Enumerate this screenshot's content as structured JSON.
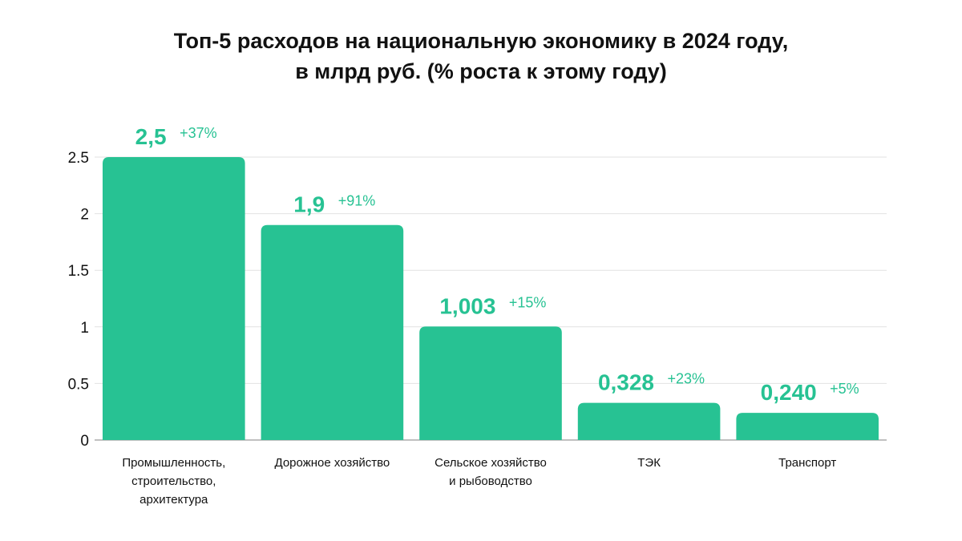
{
  "chart_data": {
    "type": "bar",
    "title_line1": "Топ-5 расходов на национальную экономику в 2024 году,",
    "title_line2": "в млрд руб. (% роста к этому году)",
    "categories": [
      [
        "Промышленность,",
        "строительство,",
        "архитектура"
      ],
      [
        "Дорожное хозяйство"
      ],
      [
        "Сельское хозяйство",
        "и рыбоводство"
      ],
      [
        "ТЭК"
      ],
      [
        "Транспорт"
      ]
    ],
    "values": [
      2.5,
      1.9,
      1.003,
      0.328,
      0.24
    ],
    "value_labels": [
      "2,5",
      "1,9",
      "1,003",
      "0,328",
      "0,240"
    ],
    "growth_labels": [
      "+37%",
      "+91%",
      "+15%",
      "+23%",
      "+5%"
    ],
    "y_ticks": [
      "0",
      "0.5",
      "1",
      "1.5",
      "2",
      "2.5"
    ],
    "ylim": [
      0,
      2.5
    ],
    "grid": true,
    "bar_color": "#27C293",
    "label_color": "#27C293",
    "grid_color": "#E2E2E2"
  }
}
